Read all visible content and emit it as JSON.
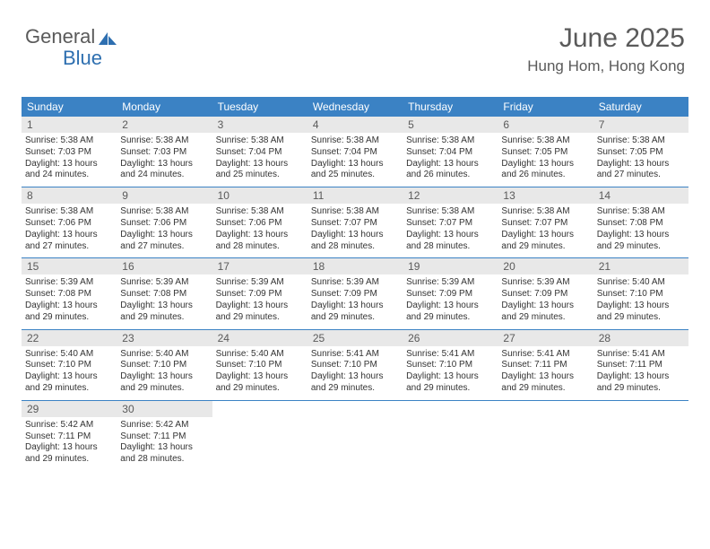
{
  "logo": {
    "text_general": "General",
    "text_blue": "Blue",
    "icon_color": "#2e6fb0"
  },
  "header": {
    "month": "June 2025",
    "location": "Hung Hom, Hong Kong"
  },
  "colors": {
    "header_bg": "#3b82c4",
    "header_text": "#ffffff",
    "daynum_bg": "#e8e8e8",
    "text_dark": "#5a5a5a",
    "week_border": "#3b82c4"
  },
  "dow": [
    "Sunday",
    "Monday",
    "Tuesday",
    "Wednesday",
    "Thursday",
    "Friday",
    "Saturday"
  ],
  "days": [
    {
      "n": "1",
      "sr": "5:38 AM",
      "ss": "7:03 PM",
      "dl": "13 hours and 24 minutes."
    },
    {
      "n": "2",
      "sr": "5:38 AM",
      "ss": "7:03 PM",
      "dl": "13 hours and 24 minutes."
    },
    {
      "n": "3",
      "sr": "5:38 AM",
      "ss": "7:04 PM",
      "dl": "13 hours and 25 minutes."
    },
    {
      "n": "4",
      "sr": "5:38 AM",
      "ss": "7:04 PM",
      "dl": "13 hours and 25 minutes."
    },
    {
      "n": "5",
      "sr": "5:38 AM",
      "ss": "7:04 PM",
      "dl": "13 hours and 26 minutes."
    },
    {
      "n": "6",
      "sr": "5:38 AM",
      "ss": "7:05 PM",
      "dl": "13 hours and 26 minutes."
    },
    {
      "n": "7",
      "sr": "5:38 AM",
      "ss": "7:05 PM",
      "dl": "13 hours and 27 minutes."
    },
    {
      "n": "8",
      "sr": "5:38 AM",
      "ss": "7:06 PM",
      "dl": "13 hours and 27 minutes."
    },
    {
      "n": "9",
      "sr": "5:38 AM",
      "ss": "7:06 PM",
      "dl": "13 hours and 27 minutes."
    },
    {
      "n": "10",
      "sr": "5:38 AM",
      "ss": "7:06 PM",
      "dl": "13 hours and 28 minutes."
    },
    {
      "n": "11",
      "sr": "5:38 AM",
      "ss": "7:07 PM",
      "dl": "13 hours and 28 minutes."
    },
    {
      "n": "12",
      "sr": "5:38 AM",
      "ss": "7:07 PM",
      "dl": "13 hours and 28 minutes."
    },
    {
      "n": "13",
      "sr": "5:38 AM",
      "ss": "7:07 PM",
      "dl": "13 hours and 29 minutes."
    },
    {
      "n": "14",
      "sr": "5:38 AM",
      "ss": "7:08 PM",
      "dl": "13 hours and 29 minutes."
    },
    {
      "n": "15",
      "sr": "5:39 AM",
      "ss": "7:08 PM",
      "dl": "13 hours and 29 minutes."
    },
    {
      "n": "16",
      "sr": "5:39 AM",
      "ss": "7:08 PM",
      "dl": "13 hours and 29 minutes."
    },
    {
      "n": "17",
      "sr": "5:39 AM",
      "ss": "7:09 PM",
      "dl": "13 hours and 29 minutes."
    },
    {
      "n": "18",
      "sr": "5:39 AM",
      "ss": "7:09 PM",
      "dl": "13 hours and 29 minutes."
    },
    {
      "n": "19",
      "sr": "5:39 AM",
      "ss": "7:09 PM",
      "dl": "13 hours and 29 minutes."
    },
    {
      "n": "20",
      "sr": "5:39 AM",
      "ss": "7:09 PM",
      "dl": "13 hours and 29 minutes."
    },
    {
      "n": "21",
      "sr": "5:40 AM",
      "ss": "7:10 PM",
      "dl": "13 hours and 29 minutes."
    },
    {
      "n": "22",
      "sr": "5:40 AM",
      "ss": "7:10 PM",
      "dl": "13 hours and 29 minutes."
    },
    {
      "n": "23",
      "sr": "5:40 AM",
      "ss": "7:10 PM",
      "dl": "13 hours and 29 minutes."
    },
    {
      "n": "24",
      "sr": "5:40 AM",
      "ss": "7:10 PM",
      "dl": "13 hours and 29 minutes."
    },
    {
      "n": "25",
      "sr": "5:41 AM",
      "ss": "7:10 PM",
      "dl": "13 hours and 29 minutes."
    },
    {
      "n": "26",
      "sr": "5:41 AM",
      "ss": "7:10 PM",
      "dl": "13 hours and 29 minutes."
    },
    {
      "n": "27",
      "sr": "5:41 AM",
      "ss": "7:11 PM",
      "dl": "13 hours and 29 minutes."
    },
    {
      "n": "28",
      "sr": "5:41 AM",
      "ss": "7:11 PM",
      "dl": "13 hours and 29 minutes."
    },
    {
      "n": "29",
      "sr": "5:42 AM",
      "ss": "7:11 PM",
      "dl": "13 hours and 29 minutes."
    },
    {
      "n": "30",
      "sr": "5:42 AM",
      "ss": "7:11 PM",
      "dl": "13 hours and 28 minutes."
    }
  ],
  "labels": {
    "sunrise": "Sunrise:",
    "sunset": "Sunset:",
    "daylight": "Daylight:"
  }
}
